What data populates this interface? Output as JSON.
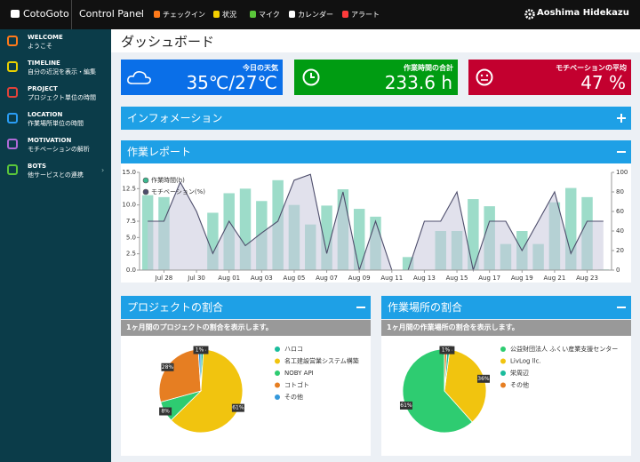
{
  "header": {
    "brand": "CotoGoto",
    "menu": "Control Panel",
    "nav": [
      "チェックイン",
      "状況",
      "マイク",
      "カレンダー",
      "アラート"
    ],
    "user": "Aoshima Hidekazu"
  },
  "sidebar": [
    {
      "title": "WELCOME",
      "subtitle": "ようこそ"
    },
    {
      "title": "TIMELINE",
      "subtitle": "自分の近況を表示・編集"
    },
    {
      "title": "PROJECT",
      "subtitle": "プロジェクト単位の時間"
    },
    {
      "title": "LOCATION",
      "subtitle": "作業場所単位の時間"
    },
    {
      "title": "MOTIVATION",
      "subtitle": "モチベーションの解析"
    },
    {
      "title": "BOTS",
      "subtitle": "他サービスとの連携"
    }
  ],
  "page_title": "ダッシュボード",
  "stats": [
    {
      "label": "今日の天気",
      "value": "35℃/27℃"
    },
    {
      "label": "作業時間の合計",
      "value": "233.6 h"
    },
    {
      "label": "モチベーションの平均",
      "value": "47 %"
    }
  ],
  "info_panel": {
    "title": "インフォメーション"
  },
  "chart_data": [
    {
      "type": "bar",
      "title": "作業レポート",
      "categories": [
        null,
        "Jul 28",
        null,
        "Jul 30",
        null,
        "Aug 01",
        null,
        "Aug 03",
        null,
        "Aug 05",
        null,
        "Aug 07",
        null,
        "Aug 09",
        null,
        "Aug 11",
        null,
        "Aug 13",
        null,
        "Aug 15",
        null,
        "Aug 17",
        null,
        "Aug 19",
        null,
        "Aug 21",
        null,
        "Aug 23",
        null
      ],
      "series": [
        {
          "name": "作業時間(h)",
          "type": "bar",
          "color": "#9ddcc9",
          "values": [
            11.5,
            11.2,
            0,
            0,
            8.8,
            11.8,
            12.5,
            10.6,
            13.8,
            10,
            7,
            9.9,
            12.4,
            9.4,
            8.2,
            0,
            2,
            0,
            6,
            6,
            10.9,
            9.8,
            4,
            6,
            4,
            10.4,
            12.6,
            11.2,
            0.1
          ]
        },
        {
          "name": "モチベーション(%)",
          "type": "line",
          "axis": "y2",
          "color": "#4d4d6b",
          "values": [
            50,
            50,
            90,
            60,
            17,
            50,
            25,
            38,
            50,
            92,
            98,
            17,
            80,
            0,
            50,
            0,
            0,
            50,
            50,
            80,
            0,
            50,
            50,
            20,
            50,
            80,
            17,
            50,
            50
          ]
        }
      ],
      "ylim": [
        0,
        15
      ],
      "yticks": [
        {
          "value": 0,
          "label": "0.0"
        },
        {
          "value": 2.5,
          "label": "2.5"
        },
        {
          "value": 5,
          "label": "5.0"
        },
        {
          "value": 7.5,
          "label": "7.5"
        },
        {
          "value": 10,
          "label": "10.0"
        },
        {
          "value": 12.5,
          "label": "12.5"
        },
        {
          "value": 15,
          "label": "15.0"
        }
      ],
      "y2lim": [
        0,
        100
      ],
      "y2ticks": [
        0,
        20,
        40,
        60,
        80,
        100
      ],
      "legend": "upper left"
    },
    {
      "type": "pie",
      "title": "プロジェクトの割合",
      "subtitle": "1ヶ月間のプロジェクトの割合を表示します。",
      "categories": [
        "ハロコ",
        "名工建設営業システム構築",
        "NOBY API",
        "コトゴト",
        "その他"
      ],
      "values": [
        1,
        61,
        8,
        28,
        1
      ],
      "value_labels": [
        "1%",
        "61%",
        "8%",
        "28%",
        "1%"
      ],
      "colors": [
        "#1abc9c",
        "#f1c40f",
        "#2ecc71",
        "#e67e22",
        "#3498db"
      ]
    },
    {
      "type": "pie",
      "title": "作業場所の割合",
      "subtitle": "1ヶ月間の作業場所の割合を表示します。",
      "categories": [
        "公益財団法人 ふくい産業支援センター",
        "LivLog llc.",
        "栄周辺",
        "その他"
      ],
      "values": [
        61,
        36,
        1,
        1
      ],
      "value_labels": [
        "61%",
        "36%",
        "1%",
        "1%"
      ],
      "colors": [
        "#2ecc71",
        "#f1c40f",
        "#1abc9c",
        "#e67e22"
      ]
    }
  ]
}
